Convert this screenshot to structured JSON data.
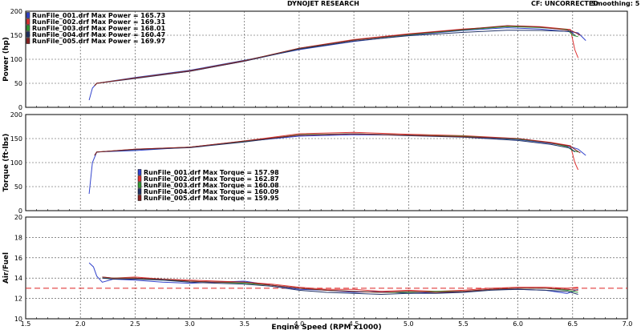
{
  "header": {
    "title": "DYNOJET RESEARCH",
    "cf": "CF: UNCORRECTED",
    "smoothing": "Smoothing: 5"
  },
  "x_axis": {
    "label": "Engine Speed (RPM x1000)",
    "range": [
      1.5,
      7.0
    ],
    "ticks": [
      "1.5",
      "2.0",
      "2.5",
      "3.0",
      "3.5",
      "4.0",
      "4.5",
      "5.0",
      "5.5",
      "6.0",
      "6.5",
      "7.0"
    ]
  },
  "run_colors": [
    "#3344cc",
    "#dd3333",
    "#339933",
    "#223366",
    "#882222"
  ],
  "chart_data": [
    {
      "type": "line",
      "id": "power",
      "ylabel": "Power (hp)",
      "ylim": [
        0,
        200
      ],
      "yticks": [
        "0",
        "50",
        "100",
        "150",
        "200"
      ],
      "grid": true,
      "legend_position": "top-left",
      "legend": [
        "RunFile_001.drf Max Power = 165.73",
        "RunFile_002.drf Max Power = 169.31",
        "RunFile_003.drf Max Power = 168.01",
        "RunFile_004.drf Max Power = 160.47",
        "RunFile_005.drf Max Power = 169.97"
      ],
      "series": [
        {
          "name": "RunFile_001.drf",
          "x": [
            2.08,
            2.11,
            2.15,
            2.5,
            3.0,
            3.5,
            4.0,
            4.5,
            5.0,
            5.5,
            5.9,
            6.2,
            6.48,
            6.55,
            6.62
          ],
          "y": [
            15,
            40,
            50,
            62,
            77,
            98,
            120,
            137,
            150,
            160,
            165.7,
            163,
            157,
            155,
            139
          ]
        },
        {
          "name": "RunFile_002.drf",
          "x": [
            2.13,
            2.15,
            2.5,
            3.0,
            3.5,
            4.0,
            4.5,
            5.0,
            5.5,
            6.0,
            6.2,
            6.48,
            6.52,
            6.55
          ],
          "y": [
            45,
            50,
            61,
            75,
            96,
            123,
            141,
            153,
            163,
            169.3,
            168,
            162,
            120,
            103
          ]
        },
        {
          "name": "RunFile_003.drf",
          "x": [
            2.13,
            2.15,
            2.5,
            3.0,
            3.5,
            4.0,
            4.5,
            5.0,
            5.5,
            5.9,
            6.2,
            6.45,
            6.5,
            6.55
          ],
          "y": [
            45,
            50,
            61,
            76,
            97,
            122,
            140,
            151,
            161,
            168,
            166,
            162,
            150,
            147
          ]
        },
        {
          "name": "RunFile_004.drf",
          "x": [
            2.13,
            2.15,
            2.5,
            3.0,
            3.5,
            4.0,
            4.5,
            5.0,
            5.5,
            5.9,
            6.2,
            6.48,
            6.52
          ],
          "y": [
            45,
            50,
            60,
            75,
            96,
            121,
            138,
            149,
            156,
            160.5,
            160,
            158,
            150
          ]
        },
        {
          "name": "RunFile_005.drf",
          "x": [
            2.13,
            2.15,
            2.5,
            3.0,
            3.5,
            4.0,
            4.5,
            5.0,
            5.5,
            5.9,
            6.2,
            6.48,
            6.53,
            6.57
          ],
          "y": [
            45,
            50,
            61,
            76,
            97,
            123,
            140,
            152,
            162,
            170,
            167,
            160,
            155,
            150
          ]
        }
      ]
    },
    {
      "type": "line",
      "id": "torque",
      "ylabel": "Torque (ft-lbs)",
      "ylim": [
        0,
        200
      ],
      "yticks": [
        "0",
        "50",
        "100",
        "150",
        "200"
      ],
      "grid": true,
      "legend_position": "lower-left",
      "legend": [
        "RunFile_001.drf Max Torque = 157.98",
        "RunFile_002.drf Max Torque = 162.87",
        "RunFile_003.drf Max Torque = 160.08",
        "RunFile_004.drf Max Torque = 160.09",
        "RunFile_005.drf Max Torque = 159.95"
      ],
      "series": [
        {
          "name": "RunFile_001.drf",
          "x": [
            2.08,
            2.11,
            2.15,
            2.5,
            3.0,
            3.5,
            4.0,
            4.5,
            5.0,
            5.5,
            6.0,
            6.3,
            6.48,
            6.55,
            6.62
          ],
          "y": [
            35,
            100,
            122,
            125,
            132,
            144,
            155,
            158,
            157,
            154,
            148,
            140,
            133,
            128,
            115
          ]
        },
        {
          "name": "RunFile_002.drf",
          "x": [
            2.13,
            2.15,
            2.5,
            3.0,
            3.5,
            4.0,
            4.5,
            5.0,
            5.5,
            6.0,
            6.3,
            6.48,
            6.52,
            6.55
          ],
          "y": [
            115,
            122,
            128,
            132,
            145,
            160,
            162.9,
            159,
            156,
            150,
            142,
            135,
            100,
            85
          ]
        },
        {
          "name": "RunFile_003.drf",
          "x": [
            2.13,
            2.15,
            2.5,
            3.0,
            3.5,
            4.0,
            4.5,
            5.0,
            5.5,
            6.0,
            6.3,
            6.45,
            6.5,
            6.55
          ],
          "y": [
            115,
            122,
            127,
            132,
            144,
            158,
            160,
            157,
            155,
            149,
            141,
            133,
            125,
            122
          ]
        },
        {
          "name": "RunFile_004.drf",
          "x": [
            2.13,
            2.15,
            2.5,
            3.0,
            3.5,
            4.0,
            4.5,
            5.0,
            5.5,
            6.0,
            6.3,
            6.48,
            6.52
          ],
          "y": [
            115,
            122,
            127,
            131,
            143,
            157,
            160,
            156,
            153,
            146,
            138,
            130,
            122
          ]
        },
        {
          "name": "RunFile_005.drf",
          "x": [
            2.13,
            2.15,
            2.5,
            3.0,
            3.5,
            4.0,
            4.5,
            5.0,
            5.5,
            6.0,
            6.3,
            6.48,
            6.53,
            6.57
          ],
          "y": [
            115,
            122,
            128,
            132,
            145,
            157,
            159.9,
            157,
            154,
            150,
            141,
            134,
            126,
            120
          ]
        }
      ]
    },
    {
      "type": "line",
      "id": "air_fuel",
      "ylabel": "Air/Fuel",
      "ylim": [
        10,
        20
      ],
      "yticks": [
        "10",
        "12",
        "14",
        "16",
        "18",
        "20"
      ],
      "grid": true,
      "reference_line": 13.0,
      "reference_color": "#dd2222",
      "series": [
        {
          "name": "RunFile_001.drf",
          "x": [
            2.08,
            2.12,
            2.15,
            2.2,
            2.3,
            2.5,
            2.75,
            3.0,
            3.25,
            3.5,
            3.75,
            4.0,
            4.25,
            4.5,
            4.75,
            5.0,
            5.25,
            5.5,
            5.75,
            6.0,
            6.25,
            6.45,
            6.55
          ],
          "y": [
            15.5,
            15.1,
            14.2,
            13.6,
            13.9,
            13.8,
            13.6,
            13.5,
            13.6,
            13.7,
            13.3,
            12.9,
            12.8,
            12.6,
            12.7,
            12.5,
            12.6,
            12.6,
            12.9,
            12.9,
            12.8,
            12.5,
            12.9
          ]
        },
        {
          "name": "RunFile_002.drf",
          "x": [
            2.2,
            2.3,
            2.5,
            2.75,
            3.0,
            3.25,
            3.5,
            3.75,
            4.0,
            4.25,
            4.5,
            4.75,
            5.0,
            5.25,
            5.5,
            5.75,
            6.0,
            6.25,
            6.45,
            6.55
          ],
          "y": [
            14.1,
            14.0,
            14.1,
            13.9,
            13.8,
            13.7,
            13.6,
            13.4,
            13.1,
            12.9,
            12.9,
            12.7,
            12.8,
            12.7,
            12.8,
            13.0,
            13.1,
            13.1,
            13.0,
            13.1
          ]
        },
        {
          "name": "RunFile_003.drf",
          "x": [
            2.2,
            2.3,
            2.5,
            2.75,
            3.0,
            3.25,
            3.5,
            3.75,
            4.0,
            4.25,
            4.5,
            4.75,
            5.0,
            5.25,
            5.5,
            5.75,
            6.0,
            6.25,
            6.45,
            6.55
          ],
          "y": [
            14.0,
            14.0,
            14.0,
            13.8,
            13.7,
            13.6,
            13.5,
            13.3,
            13.0,
            12.8,
            12.7,
            12.6,
            12.6,
            12.7,
            12.7,
            12.9,
            13.0,
            13.0,
            12.8,
            12.6
          ]
        },
        {
          "name": "RunFile_004.drf",
          "x": [
            2.2,
            2.3,
            2.5,
            2.75,
            3.0,
            3.25,
            3.5,
            3.75,
            4.0,
            4.25,
            4.5,
            4.75,
            5.0,
            5.25,
            5.5,
            5.75,
            6.0,
            6.25,
            6.45,
            6.55
          ],
          "y": [
            14.0,
            13.9,
            13.9,
            13.8,
            13.6,
            13.5,
            13.4,
            13.2,
            12.8,
            12.6,
            12.5,
            12.4,
            12.5,
            12.5,
            12.6,
            12.8,
            12.9,
            12.8,
            12.7,
            12.4
          ]
        },
        {
          "name": "RunFile_005.drf",
          "x": [
            2.2,
            2.3,
            2.5,
            2.75,
            3.0,
            3.25,
            3.5,
            3.75,
            4.0,
            4.25,
            4.5,
            4.75,
            5.0,
            5.25,
            5.5,
            5.75,
            6.0,
            6.25,
            6.45,
            6.55
          ],
          "y": [
            14.1,
            14.0,
            14.0,
            13.9,
            13.7,
            13.6,
            13.6,
            13.3,
            13.0,
            12.8,
            12.7,
            12.6,
            12.7,
            12.6,
            12.7,
            12.9,
            13.0,
            13.0,
            12.9,
            12.8
          ]
        }
      ]
    }
  ]
}
